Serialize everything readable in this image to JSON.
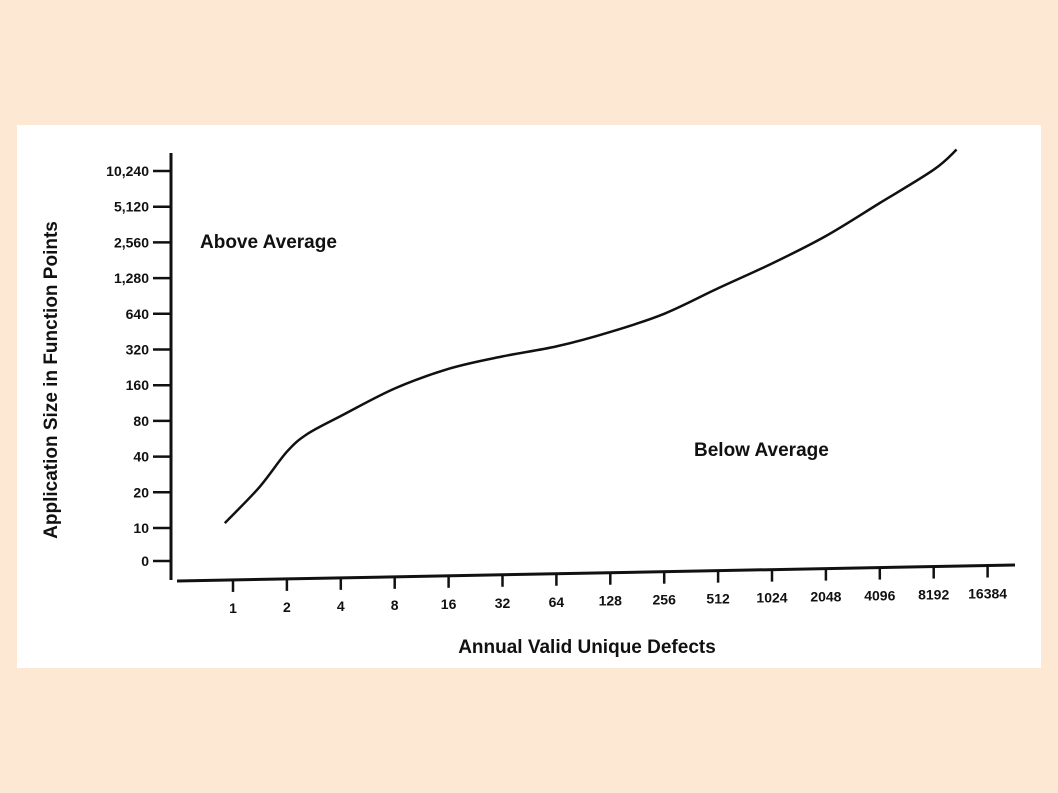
{
  "chart_data": {
    "type": "line",
    "title": "",
    "xlabel": "Annual Valid Unique Defects",
    "ylabel": "Application Size in Function Points",
    "x_scale": "log2",
    "y_scale": "log2",
    "x_ticks": [
      "1",
      "2",
      "4",
      "8",
      "16",
      "32",
      "64",
      "128",
      "256",
      "512",
      "1024",
      "2048",
      "4096",
      "8192",
      "16384"
    ],
    "y_ticks": [
      "0",
      "10",
      "20",
      "40",
      "80",
      "160",
      "320",
      "640",
      "1,280",
      "2,560",
      "5,120",
      "10,240"
    ],
    "annotations": [
      "Above Average",
      "Below Average"
    ],
    "grid": false,
    "series": [
      {
        "x": [
          0.9,
          1.4,
          2,
          2.6,
          4,
          8,
          16,
          32,
          64,
          128,
          256,
          512,
          1024,
          2048,
          4096,
          8192,
          11000
        ],
        "y": [
          11,
          22,
          44,
          62,
          88,
          150,
          220,
          280,
          340,
          450,
          640,
          1050,
          1700,
          2900,
          5500,
          10500,
          15500
        ]
      }
    ]
  },
  "colors": {
    "background": "#fde9d3",
    "panel": "#ffffff",
    "ink": "#111111"
  }
}
